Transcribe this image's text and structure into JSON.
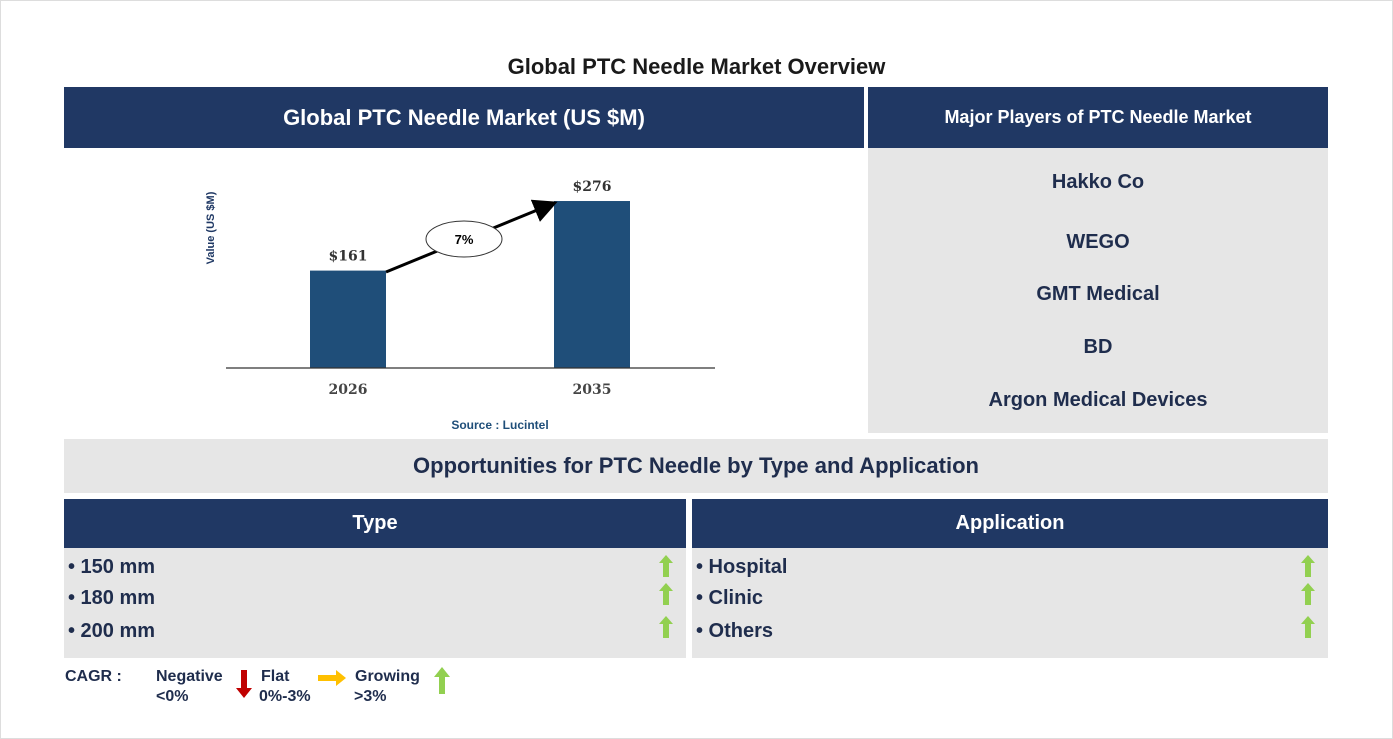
{
  "title": "Global PTC Needle Market Overview",
  "chart_panel": {
    "header": "Global PTC Needle Market (US $M)",
    "source": "Source : Lucintel"
  },
  "chart_data": {
    "type": "bar",
    "title": "",
    "xlabel": "",
    "ylabel": "Value (US $M)",
    "categories": [
      "2026",
      "2035"
    ],
    "values": [
      161,
      276
    ],
    "data_labels": [
      "$161",
      "$276"
    ],
    "annotation": "7%",
    "bar_color": "#1f4e79",
    "ylim": [
      0,
      300
    ],
    "grid": false
  },
  "players": {
    "header": "Major Players of PTC Needle Market",
    "items": [
      "Hakko Co",
      "WEGO",
      "GMT Medical",
      "BD",
      "Argon Medical Devices"
    ]
  },
  "opportunities": {
    "header": "Opportunities for PTC Needle by Type and Application",
    "type": {
      "header": "Type",
      "items": [
        "• 150 mm",
        "• 180 mm",
        "• 200 mm"
      ],
      "trend": [
        "growing",
        "growing",
        "growing"
      ]
    },
    "application": {
      "header": "Application",
      "items": [
        "• Hospital",
        "• Clinic",
        "• Others"
      ],
      "trend": [
        "growing",
        "growing",
        "growing"
      ]
    }
  },
  "legend": {
    "label": "CAGR :",
    "negative": "Negative",
    "negative_range": "<0%",
    "flat": "Flat",
    "flat_range": "0%-3%",
    "growing": "Growing",
    "growing_range": ">3%",
    "colors": {
      "negative": "#c00000",
      "flat": "#ffc000",
      "growing": "#92d050"
    }
  }
}
